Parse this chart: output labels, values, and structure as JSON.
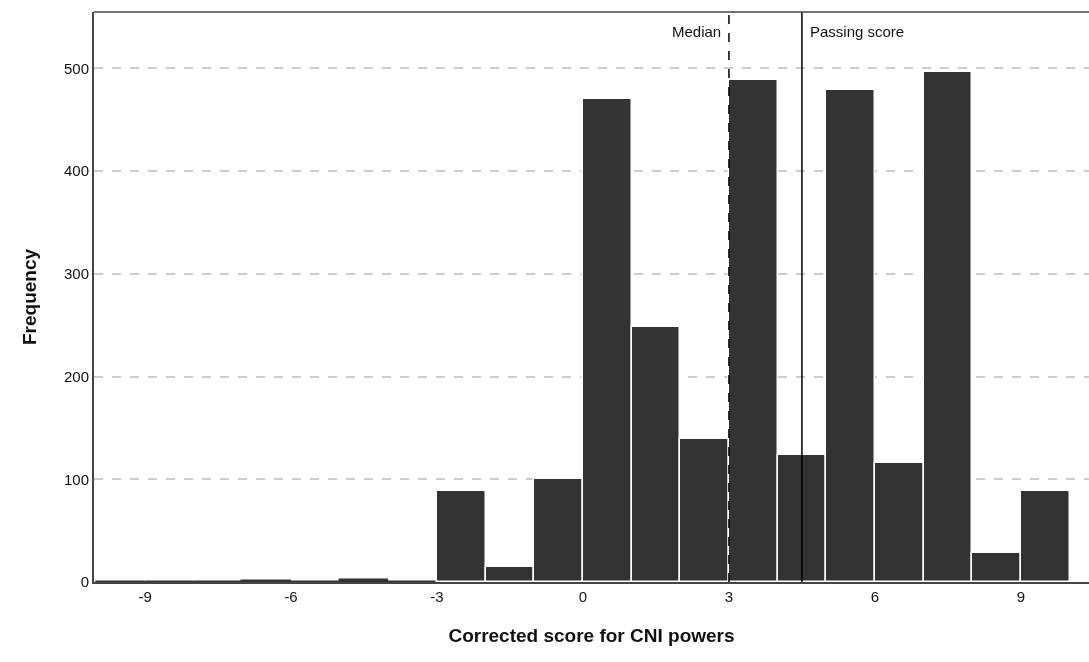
{
  "chart_data": {
    "type": "histogram",
    "xlabel": "Corrected score for CNI powers",
    "ylabel": "Frequency",
    "bins": [
      -10,
      -9,
      -8,
      -7,
      -6,
      -5,
      -4,
      -3,
      -2,
      -1,
      0,
      1,
      2,
      3,
      4,
      5,
      6,
      7,
      8,
      9,
      10
    ],
    "values": [
      0,
      0,
      0,
      1,
      0,
      2,
      0,
      89,
      15,
      100,
      470,
      248,
      139,
      489,
      124,
      479,
      116,
      497,
      28,
      89
    ],
    "color": "#333333",
    "xlim": [
      -10.05,
      10.4
    ],
    "xticks": [
      -9,
      -6,
      -3,
      0,
      3,
      6,
      9
    ],
    "ylim": [
      0,
      555
    ],
    "yticks": [
      0,
      100,
      200,
      300,
      400,
      500
    ],
    "grid": "y",
    "ref_lines": [
      {
        "axis": "x",
        "value": 3,
        "label": "Median",
        "line_style": "dashed",
        "color": "#000000"
      },
      {
        "axis": "x",
        "value": 4.5,
        "label": "Passing score",
        "line_style": "solid",
        "color": "#000000"
      }
    ]
  }
}
